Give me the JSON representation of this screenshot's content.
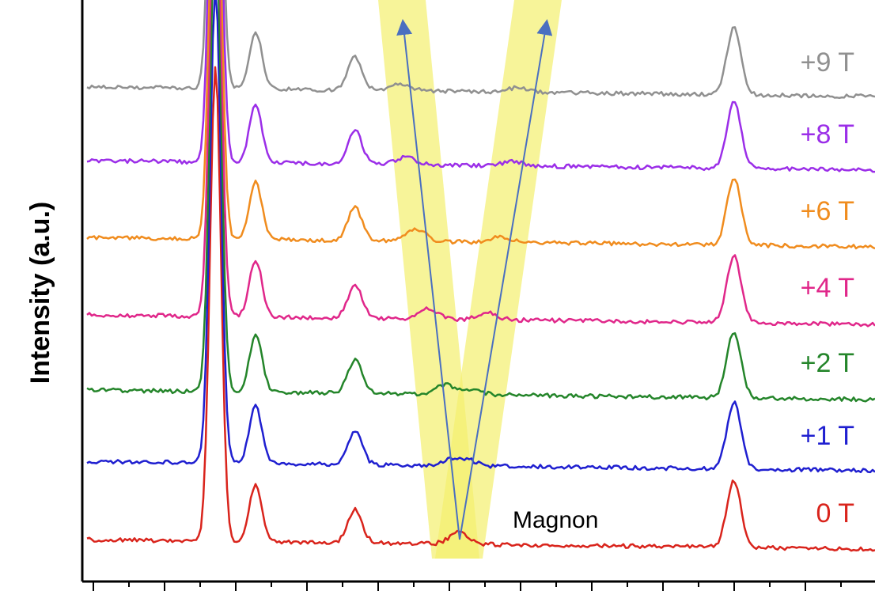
{
  "chart_data": {
    "type": "line",
    "title": "",
    "ylabel": "Intensity (a.u.)",
    "xlabel": "",
    "grid": false,
    "legend": "inline-right",
    "series": [
      {
        "name": "0 T",
        "color": "#d9241c",
        "peaks": [
          [
            163,
            1.0
          ],
          [
            214,
            0.12
          ],
          [
            340,
            0.07
          ],
          [
            472,
            0.025
          ],
          [
            821,
            0.14
          ]
        ]
      },
      {
        "name": "+1 T",
        "color": "#1f1fd0",
        "peaks": [
          [
            163,
            1.0
          ],
          [
            214,
            0.12
          ],
          [
            340,
            0.07
          ],
          [
            462,
            0.012
          ],
          [
            482,
            0.012
          ],
          [
            821,
            0.14
          ]
        ]
      },
      {
        "name": "+2 T",
        "color": "#24852a",
        "peaks": [
          [
            163,
            1.0
          ],
          [
            214,
            0.12
          ],
          [
            340,
            0.07
          ],
          [
            455,
            0.02
          ],
          [
            490,
            0.01
          ],
          [
            821,
            0.14
          ]
        ]
      },
      {
        "name": "+4 T",
        "color": "#e0278a",
        "peaks": [
          [
            163,
            1.0
          ],
          [
            214,
            0.12
          ],
          [
            340,
            0.07
          ],
          [
            433,
            0.022
          ],
          [
            508,
            0.015
          ],
          [
            821,
            0.14
          ]
        ]
      },
      {
        "name": "+6 T",
        "color": "#f08c1e",
        "peaks": [
          [
            163,
            1.0
          ],
          [
            214,
            0.12
          ],
          [
            340,
            0.07
          ],
          [
            418,
            0.025
          ],
          [
            525,
            0.012
          ],
          [
            821,
            0.14
          ]
        ]
      },
      {
        "name": "+8 T",
        "color": "#9b2ee8",
        "peaks": [
          [
            163,
            1.0
          ],
          [
            214,
            0.12
          ],
          [
            340,
            0.07
          ],
          [
            405,
            0.015
          ],
          [
            540,
            0.01
          ],
          [
            821,
            0.14
          ]
        ]
      },
      {
        "name": "+9 T",
        "color": "#909090",
        "peaks": [
          [
            163,
            1.0
          ],
          [
            214,
            0.12
          ],
          [
            340,
            0.07
          ],
          [
            398,
            0.015
          ],
          [
            548,
            0.01
          ],
          [
            821,
            0.14
          ]
        ]
      }
    ],
    "annotations": [
      {
        "text": "Magnon"
      }
    ],
    "highlight_color": "#f3f06e",
    "arrow_color": "#4a6fc0"
  }
}
